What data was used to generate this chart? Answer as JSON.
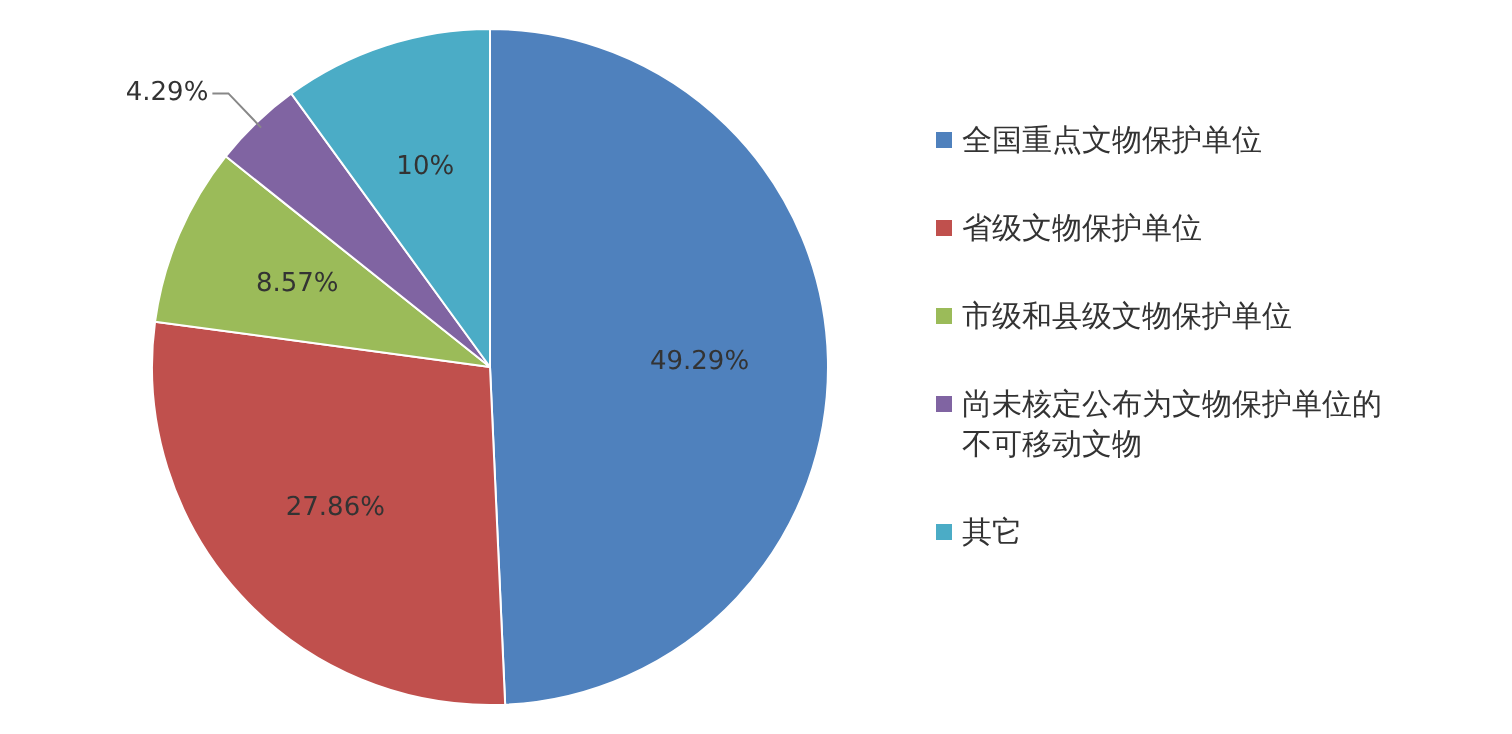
{
  "chart_data": {
    "type": "pie",
    "categories": [
      "全国重点文物保护单位",
      "省级文物保护单位",
      "市级和县级文物保护单位",
      "尚未核定公布为文物保护单位的不可移动文物",
      "其它"
    ],
    "values": [
      49.29,
      27.86,
      8.57,
      4.29,
      10
    ],
    "colors": [
      "#4f81bd",
      "#c0504d",
      "#9bbb59",
      "#8064a2",
      "#4bacc6"
    ],
    "value_labels": [
      "49.29%",
      "27.86%",
      "8.57%",
      "4.29%",
      "10%"
    ],
    "legend": "right"
  }
}
